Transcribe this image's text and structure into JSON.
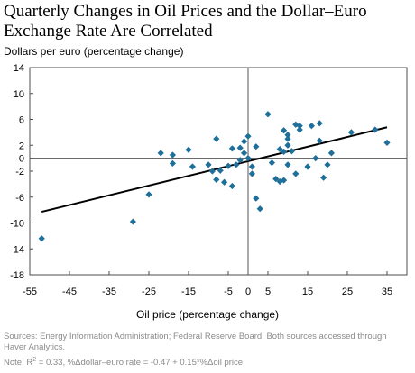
{
  "title_lines": [
    "Quarterly Changes in Oil Prices and the Dollar–Euro",
    "Exchange Rate Are Correlated"
  ],
  "sources": "Sources: Energy Information Administration; Federal Reserve Board. Both sources accessed through Haver Analytics.",
  "note": {
    "prefix": "Note: R",
    "sup": "2",
    "suffix": " = 0.33, %Δdollar–euro rate = -0.47 + 0.15*%Δoil price."
  },
  "colors": {
    "marker": "#1f6f9b",
    "frame": "#4d4d4d",
    "axis": "#555555",
    "line": "#000000"
  },
  "chart_data": {
    "type": "scatter",
    "xlabel": "Oil price (percentage change)",
    "ylabel": "Dollars per euro (percentage change)",
    "xlim": [
      -55,
      40
    ],
    "ylim": [
      -18,
      14
    ],
    "x_ticks": [
      -55,
      -45,
      -35,
      -25,
      -15,
      -5,
      0,
      5,
      15,
      25,
      35
    ],
    "y_ticks": [
      14,
      10,
      6,
      2,
      0,
      -2,
      -6,
      -10,
      -14,
      -18
    ],
    "grid": false,
    "zero_lines": true,
    "series": [
      {
        "marker": "diamond",
        "points": [
          [
            -52,
            -12.4
          ],
          [
            -29,
            -9.8
          ],
          [
            -25,
            -5.6
          ],
          [
            -22,
            0.8
          ],
          [
            -19,
            0.5
          ],
          [
            -19,
            -0.8
          ],
          [
            -15,
            1.3
          ],
          [
            -14,
            -1.3
          ],
          [
            -10,
            -1.0
          ],
          [
            -9,
            -2.0
          ],
          [
            -8,
            -3.3
          ],
          [
            -8,
            3.0
          ],
          [
            -7,
            -1.9
          ],
          [
            -6,
            -3.7
          ],
          [
            -5,
            -1.2
          ],
          [
            -4,
            -4.3
          ],
          [
            -4,
            1.5
          ],
          [
            -3,
            -1.0
          ],
          [
            -2,
            1.6
          ],
          [
            -2,
            -0.3
          ],
          [
            -1,
            2.6
          ],
          [
            -1,
            0.8
          ],
          [
            0,
            0.0
          ],
          [
            0,
            3.4
          ],
          [
            1,
            -1.3
          ],
          [
            1,
            -2.4
          ],
          [
            2,
            -6.2
          ],
          [
            2,
            1.8
          ],
          [
            3,
            -7.8
          ],
          [
            5,
            6.8
          ],
          [
            6,
            -0.7
          ],
          [
            7,
            -3.2
          ],
          [
            8,
            1.4
          ],
          [
            8,
            -3.6
          ],
          [
            9,
            1.0
          ],
          [
            9,
            4.3
          ],
          [
            9,
            -3.4
          ],
          [
            10,
            3.6
          ],
          [
            10,
            3.0
          ],
          [
            10,
            -1.0
          ],
          [
            10,
            2.0
          ],
          [
            11,
            1.1
          ],
          [
            12,
            -2.4
          ],
          [
            12,
            5.2
          ],
          [
            13,
            5.0
          ],
          [
            13,
            4.4
          ],
          [
            15,
            -1.3
          ],
          [
            16,
            5.0
          ],
          [
            17,
            0.0
          ],
          [
            18,
            5.4
          ],
          [
            18,
            2.7
          ],
          [
            19,
            -3.0
          ],
          [
            20,
            -1.0
          ],
          [
            21,
            0.8
          ],
          [
            26,
            4.0
          ],
          [
            32,
            4.4
          ],
          [
            35,
            2.4
          ]
        ]
      }
    ],
    "trendline": {
      "intercept": -0.47,
      "slope": 0.15,
      "x_range": [
        -52,
        35
      ]
    }
  }
}
